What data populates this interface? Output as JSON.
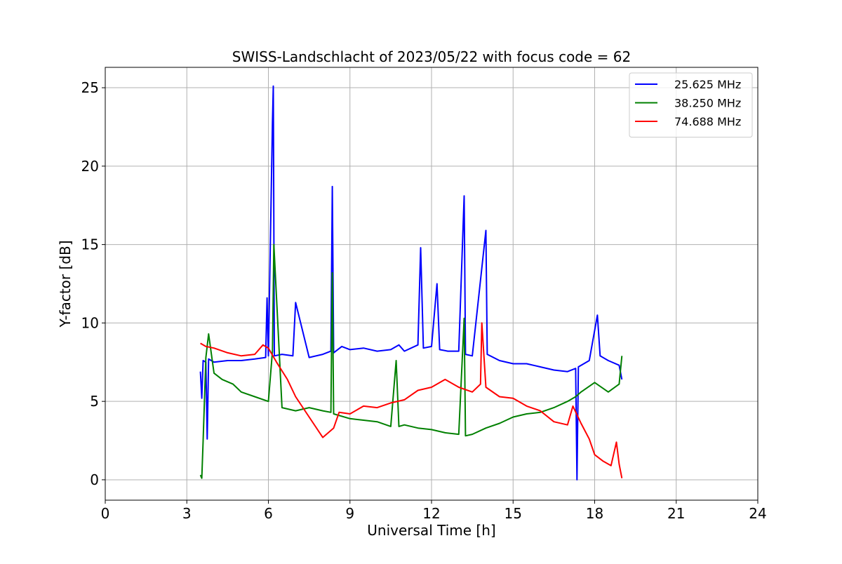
{
  "chart_data": {
    "type": "line",
    "title": "SWISS-Landschlacht of 2023/05/22 with focus code = 62",
    "xlabel": "Universal Time [h]",
    "ylabel": "Y-factor [dB]",
    "xlim": [
      0,
      24
    ],
    "ylim": [
      -1.3,
      26.3
    ],
    "xticks": [
      0,
      3,
      6,
      9,
      12,
      15,
      18,
      21,
      24
    ],
    "yticks": [
      0,
      5,
      10,
      15,
      20,
      25
    ],
    "grid": true,
    "legend_position": "top-right",
    "series": [
      {
        "name": "25.625 MHz",
        "color": "#0000ff",
        "x": [
          3.5,
          3.55,
          3.6,
          3.7,
          3.75,
          3.8,
          4.0,
          4.5,
          5.0,
          5.5,
          5.9,
          5.95,
          6.0,
          6.15,
          6.18,
          6.22,
          6.5,
          6.9,
          7.0,
          7.5,
          8.0,
          8.3,
          8.35,
          8.4,
          8.7,
          9.0,
          9.5,
          10.0,
          10.5,
          10.8,
          11.0,
          11.5,
          11.6,
          11.7,
          12.0,
          12.2,
          12.3,
          12.6,
          13.0,
          13.2,
          13.25,
          13.5,
          14.0,
          14.05,
          14.5,
          15.0,
          15.5,
          16.0,
          16.5,
          17.0,
          17.3,
          17.35,
          17.4,
          17.8,
          18.1,
          18.2,
          18.5,
          18.9,
          19.0
        ],
        "values": [
          6.9,
          5.2,
          7.6,
          7.5,
          2.6,
          7.7,
          7.5,
          7.6,
          7.6,
          7.7,
          7.8,
          11.6,
          7.9,
          22.8,
          25.1,
          7.9,
          8.0,
          7.9,
          11.3,
          7.8,
          8.0,
          8.2,
          18.7,
          8.1,
          8.5,
          8.3,
          8.4,
          8.2,
          8.3,
          8.6,
          8.2,
          8.6,
          14.8,
          8.4,
          8.5,
          12.5,
          8.3,
          8.2,
          8.2,
          18.1,
          8.0,
          7.9,
          15.9,
          8.0,
          7.6,
          7.4,
          7.4,
          7.2,
          7.0,
          6.9,
          7.1,
          0.0,
          7.2,
          7.6,
          10.5,
          7.9,
          7.6,
          7.3,
          6.4
        ]
      },
      {
        "name": "38.250 MHz",
        "color": "#008000",
        "x": [
          3.5,
          3.55,
          3.6,
          3.7,
          3.8,
          4.0,
          4.3,
          4.7,
          5.0,
          5.5,
          6.0,
          6.15,
          6.2,
          6.5,
          7.0,
          7.5,
          8.0,
          8.3,
          8.35,
          8.4,
          9.0,
          9.5,
          10.0,
          10.5,
          10.7,
          10.8,
          11.0,
          11.5,
          12.0,
          12.5,
          13.0,
          13.2,
          13.25,
          13.5,
          14.0,
          14.5,
          15.0,
          15.5,
          16.0,
          16.5,
          17.0,
          17.3,
          17.5,
          18.0,
          18.5,
          18.9,
          19.0
        ],
        "values": [
          0.3,
          0.1,
          2.5,
          7.8,
          9.3,
          6.8,
          6.4,
          6.1,
          5.6,
          5.3,
          5.0,
          8.2,
          15.0,
          4.6,
          4.4,
          4.6,
          4.4,
          4.3,
          13.2,
          4.2,
          3.9,
          3.8,
          3.7,
          3.4,
          7.6,
          3.4,
          3.5,
          3.3,
          3.2,
          3.0,
          2.9,
          10.3,
          2.8,
          2.9,
          3.3,
          3.6,
          4.0,
          4.2,
          4.3,
          4.6,
          5.0,
          5.3,
          5.6,
          6.2,
          5.6,
          6.1,
          7.9
        ]
      },
      {
        "name": "74.688 MHz",
        "color": "#ff0000",
        "x": [
          3.5,
          3.7,
          4.0,
          4.5,
          5.0,
          5.5,
          5.8,
          6.0,
          6.3,
          6.7,
          7.0,
          7.5,
          8.0,
          8.4,
          8.6,
          9.0,
          9.5,
          10.0,
          10.5,
          11.0,
          11.5,
          12.0,
          12.5,
          13.0,
          13.5,
          13.8,
          13.85,
          14.0,
          14.5,
          15.0,
          15.5,
          16.0,
          16.5,
          17.0,
          17.2,
          17.5,
          17.8,
          18.0,
          18.3,
          18.6,
          18.8,
          18.9,
          19.0
        ],
        "values": [
          8.7,
          8.5,
          8.4,
          8.1,
          7.9,
          8.0,
          8.6,
          8.4,
          7.5,
          6.4,
          5.3,
          4.0,
          2.7,
          3.3,
          4.3,
          4.2,
          4.7,
          4.6,
          4.9,
          5.1,
          5.7,
          5.9,
          6.4,
          5.9,
          5.6,
          6.1,
          10.0,
          5.9,
          5.3,
          5.2,
          4.7,
          4.4,
          3.7,
          3.5,
          4.7,
          3.6,
          2.6,
          1.6,
          1.2,
          0.9,
          2.4,
          1.0,
          0.1
        ]
      }
    ]
  }
}
